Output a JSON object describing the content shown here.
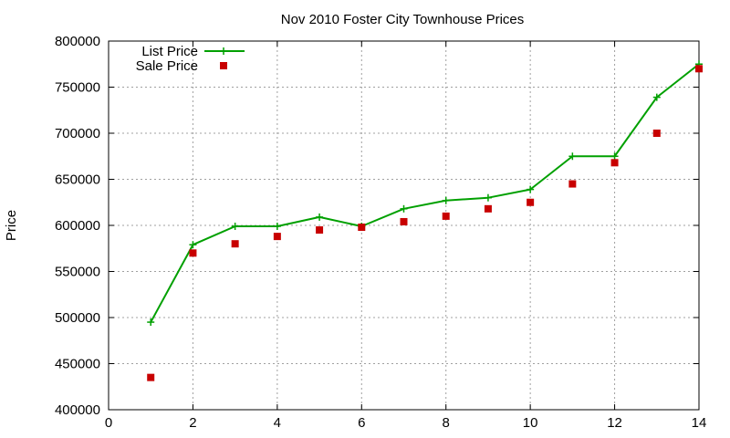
{
  "chart_data": {
    "type": "line",
    "title": "Nov 2010 Foster City Townhouse Prices",
    "xlabel": "",
    "ylabel": "Price",
    "xlim": [
      0,
      14
    ],
    "ylim": [
      400000,
      800000
    ],
    "xticks": [
      0,
      2,
      4,
      6,
      8,
      10,
      12,
      14
    ],
    "yticks": [
      400000,
      450000,
      500000,
      550000,
      600000,
      650000,
      700000,
      750000,
      800000
    ],
    "grid": true,
    "legend_position": "top-left",
    "series": [
      {
        "name": "List Price",
        "style": "lines+points",
        "marker": "plus",
        "color": "#00a000",
        "x": [
          1,
          2,
          3,
          4,
          5,
          6,
          7,
          8,
          9,
          10,
          11,
          12,
          13,
          14
        ],
        "y": [
          495000,
          579000,
          599000,
          599000,
          609000,
          599000,
          618000,
          627000,
          630000,
          639000,
          675000,
          675000,
          739000,
          775000
        ]
      },
      {
        "name": "Sale Price",
        "style": "points",
        "marker": "square",
        "color": "#c80000",
        "x": [
          1,
          2,
          3,
          4,
          5,
          6,
          7,
          8,
          9,
          10,
          11,
          12,
          13,
          14
        ],
        "y": [
          435000,
          570000,
          580000,
          588000,
          595000,
          598000,
          604000,
          610000,
          618000,
          625000,
          645000,
          668000,
          700000,
          770000
        ]
      }
    ]
  }
}
